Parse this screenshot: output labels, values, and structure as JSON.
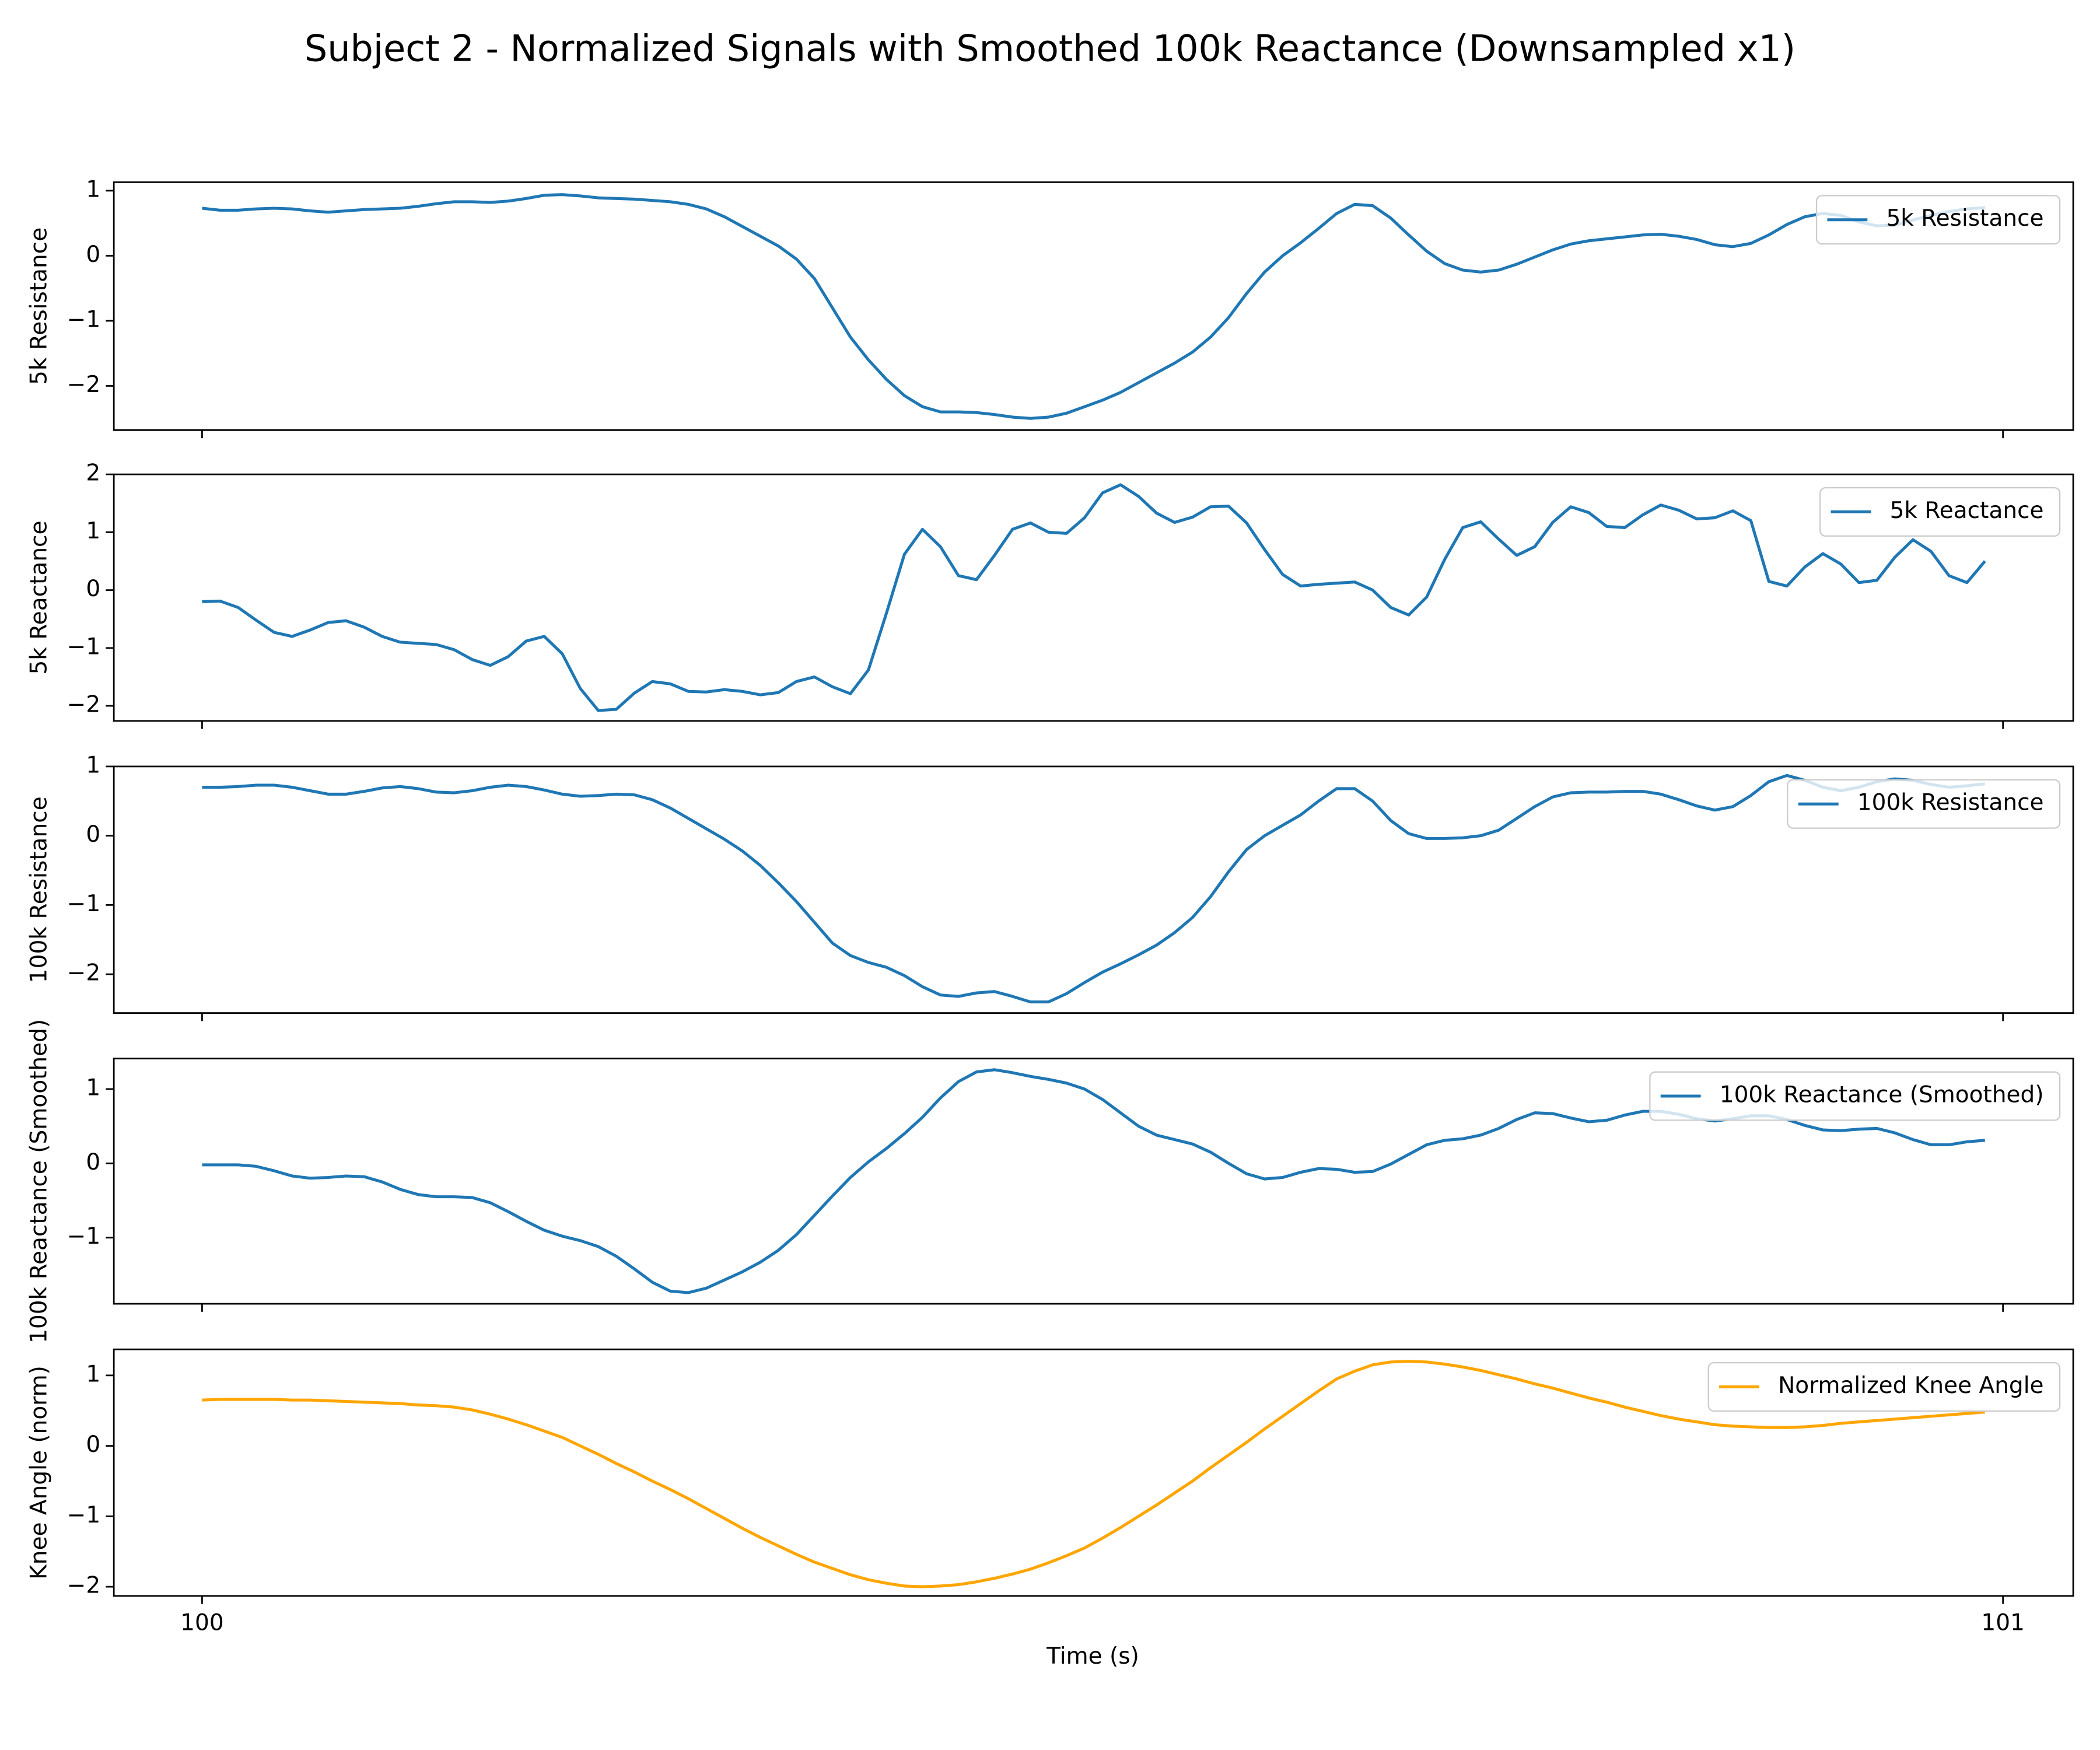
{
  "chart_data": {
    "type": "line",
    "title": "Subject 2 - Normalized Signals with Smoothed 100k Reactance (Downsampled x1)",
    "xlabel": "Time (s)",
    "xlim": [
      99.951,
      101.039
    ],
    "xticks": [
      100,
      101
    ],
    "x": [
      100.0,
      100.01,
      100.02,
      100.03,
      100.04,
      100.05,
      100.06,
      100.07,
      100.08,
      100.09,
      100.1,
      100.11,
      100.12,
      100.13,
      100.14,
      100.15,
      100.16,
      100.17,
      100.18,
      100.19,
      100.2,
      100.21,
      100.22,
      100.23,
      100.24,
      100.25,
      100.26,
      100.27,
      100.28,
      100.29,
      100.3,
      100.31,
      100.32,
      100.33,
      100.34,
      100.35,
      100.36,
      100.37,
      100.38,
      100.39,
      100.4,
      100.41,
      100.42,
      100.43,
      100.44,
      100.45,
      100.46,
      100.47,
      100.48,
      100.49,
      100.5,
      100.51,
      100.52,
      100.53,
      100.54,
      100.55,
      100.56,
      100.57,
      100.58,
      100.59,
      100.6,
      100.61,
      100.62,
      100.63,
      100.64,
      100.65,
      100.66,
      100.67,
      100.68,
      100.69,
      100.7,
      100.71,
      100.72,
      100.73,
      100.74,
      100.75,
      100.76,
      100.77,
      100.78,
      100.79,
      100.8,
      100.81,
      100.82,
      100.83,
      100.84,
      100.85,
      100.86,
      100.87,
      100.88,
      100.89,
      100.9,
      100.91,
      100.92,
      100.93,
      100.94,
      100.95,
      100.96,
      100.97,
      100.98,
      100.99
    ],
    "panels": [
      {
        "ylabel": "5k Resistance",
        "ylim": [
          -2.68,
          1.13
        ],
        "yticks": [
          {
            "value": -2,
            "label": "−2"
          },
          {
            "value": -1,
            "label": "−1"
          },
          0,
          1
        ],
        "legend": "upper right",
        "series": [
          {
            "name": "5k Resistance",
            "color": "#1f77b4",
            "values": [
              0.73,
              0.7,
              0.7,
              0.72,
              0.73,
              0.72,
              0.69,
              0.67,
              0.69,
              0.71,
              0.72,
              0.73,
              0.76,
              0.8,
              0.83,
              0.83,
              0.82,
              0.84,
              0.88,
              0.93,
              0.94,
              0.92,
              0.89,
              0.88,
              0.87,
              0.85,
              0.83,
              0.79,
              0.72,
              0.6,
              0.45,
              0.3,
              0.15,
              -0.05,
              -0.35,
              -0.8,
              -1.25,
              -1.6,
              -1.9,
              -2.15,
              -2.32,
              -2.4,
              -2.4,
              -2.41,
              -2.44,
              -2.48,
              -2.5,
              -2.48,
              -2.42,
              -2.32,
              -2.22,
              -2.1,
              -1.95,
              -1.8,
              -1.65,
              -1.48,
              -1.25,
              -0.95,
              -0.58,
              -0.25,
              0.0,
              0.2,
              0.42,
              0.65,
              0.79,
              0.77,
              0.58,
              0.32,
              0.07,
              -0.12,
              -0.22,
              -0.25,
              -0.22,
              -0.13,
              -0.02,
              0.09,
              0.18,
              0.23,
              0.26,
              0.29,
              0.32,
              0.33,
              0.3,
              0.25,
              0.17,
              0.14,
              0.19,
              0.32,
              0.48,
              0.6,
              0.65,
              0.62,
              0.52,
              0.46,
              0.47,
              0.55,
              0.62,
              0.68,
              0.72,
              0.74
            ]
          }
        ]
      },
      {
        "ylabel": "5k Reactance",
        "ylim": [
          -2.26,
          2.0
        ],
        "yticks": [
          {
            "value": -2,
            "label": "−2"
          },
          {
            "value": -1,
            "label": "−1"
          },
          0,
          1,
          2
        ],
        "legend": "upper right",
        "series": [
          {
            "name": "5k Reactance",
            "color": "#1f77b4",
            "values": [
              -0.2,
              -0.19,
              -0.3,
              -0.52,
              -0.73,
              -0.8,
              -0.69,
              -0.56,
              -0.53,
              -0.64,
              -0.8,
              -0.9,
              -0.92,
              -0.94,
              -1.03,
              -1.2,
              -1.3,
              -1.15,
              -0.88,
              -0.8,
              -1.1,
              -1.7,
              -2.08,
              -2.06,
              -1.78,
              -1.58,
              -1.62,
              -1.75,
              -1.76,
              -1.72,
              -1.75,
              -1.81,
              -1.77,
              -1.58,
              -1.5,
              -1.67,
              -1.79,
              -1.38,
              -0.4,
              0.62,
              1.05,
              0.75,
              0.25,
              0.18,
              0.6,
              1.05,
              1.16,
              1.0,
              0.98,
              1.25,
              1.68,
              1.82,
              1.62,
              1.33,
              1.17,
              1.26,
              1.44,
              1.45,
              1.16,
              0.7,
              0.27,
              0.07,
              0.1,
              0.12,
              0.14,
              0.0,
              -0.3,
              -0.43,
              -0.12,
              0.53,
              1.08,
              1.18,
              0.88,
              0.6,
              0.75,
              1.17,
              1.44,
              1.34,
              1.1,
              1.08,
              1.3,
              1.47,
              1.38,
              1.23,
              1.25,
              1.37,
              1.2,
              0.15,
              0.07,
              0.4,
              0.63,
              0.45,
              0.13,
              0.17,
              0.57,
              0.87,
              0.67,
              0.25,
              0.13,
              0.5
            ]
          }
        ]
      },
      {
        "ylabel": "100k Resistance",
        "ylim": [
          -2.56,
          1.0
        ],
        "yticks": [
          {
            "value": -2,
            "label": "−2"
          },
          {
            "value": -1,
            "label": "−1"
          },
          0,
          1
        ],
        "legend": "upper right",
        "series": [
          {
            "name": "100k Resistance",
            "color": "#1f77b4",
            "values": [
              0.7,
              0.7,
              0.71,
              0.73,
              0.73,
              0.7,
              0.65,
              0.6,
              0.6,
              0.64,
              0.69,
              0.71,
              0.68,
              0.63,
              0.62,
              0.65,
              0.7,
              0.73,
              0.71,
              0.66,
              0.6,
              0.57,
              0.58,
              0.6,
              0.59,
              0.52,
              0.4,
              0.25,
              0.1,
              -0.05,
              -0.22,
              -0.43,
              -0.68,
              -0.95,
              -1.25,
              -1.55,
              -1.73,
              -1.83,
              -1.9,
              -2.02,
              -2.18,
              -2.3,
              -2.32,
              -2.27,
              -2.25,
              -2.32,
              -2.4,
              -2.4,
              -2.28,
              -2.12,
              -1.97,
              -1.85,
              -1.72,
              -1.58,
              -1.4,
              -1.18,
              -0.88,
              -0.52,
              -0.2,
              0.0,
              0.15,
              0.3,
              0.5,
              0.68,
              0.68,
              0.5,
              0.22,
              0.03,
              -0.04,
              -0.04,
              -0.03,
              0.0,
              0.08,
              0.25,
              0.42,
              0.56,
              0.62,
              0.63,
              0.63,
              0.64,
              0.64,
              0.6,
              0.52,
              0.43,
              0.37,
              0.42,
              0.58,
              0.78,
              0.87,
              0.8,
              0.7,
              0.65,
              0.7,
              0.78,
              0.82,
              0.8,
              0.74,
              0.7,
              0.72,
              0.75
            ]
          }
        ]
      },
      {
        "ylabel": "100k Reactance (Smoothed)",
        "ylim": [
          -1.89,
          1.41
        ],
        "yticks": [
          {
            "value": -1,
            "label": "−1"
          },
          0,
          1
        ],
        "legend": "upper right",
        "series": [
          {
            "name": "100k Reactance (Smoothed)",
            "color": "#1f77b4",
            "values": [
              -0.02,
              -0.02,
              -0.02,
              -0.04,
              -0.1,
              -0.17,
              -0.2,
              -0.19,
              -0.17,
              -0.18,
              -0.25,
              -0.35,
              -0.42,
              -0.45,
              -0.45,
              -0.46,
              -0.53,
              -0.65,
              -0.78,
              -0.9,
              -0.98,
              -1.04,
              -1.12,
              -1.25,
              -1.42,
              -1.6,
              -1.72,
              -1.74,
              -1.68,
              -1.57,
              -1.46,
              -1.33,
              -1.17,
              -0.96,
              -0.7,
              -0.44,
              -0.19,
              0.02,
              0.2,
              0.4,
              0.62,
              0.88,
              1.1,
              1.23,
              1.26,
              1.22,
              1.17,
              1.13,
              1.08,
              1.0,
              0.86,
              0.68,
              0.5,
              0.38,
              0.32,
              0.26,
              0.15,
              0.0,
              -0.14,
              -0.21,
              -0.19,
              -0.12,
              -0.07,
              -0.08,
              -0.12,
              -0.11,
              -0.01,
              0.12,
              0.25,
              0.31,
              0.33,
              0.38,
              0.47,
              0.59,
              0.68,
              0.67,
              0.61,
              0.56,
              0.58,
              0.65,
              0.7,
              0.7,
              0.66,
              0.6,
              0.57,
              0.6,
              0.64,
              0.64,
              0.59,
              0.51,
              0.45,
              0.44,
              0.46,
              0.47,
              0.41,
              0.32,
              0.25,
              0.25,
              0.29,
              0.31
            ]
          }
        ]
      },
      {
        "ylabel": "Knee Angle (norm)",
        "ylim": [
          -2.13,
          1.37
        ],
        "yticks": [
          {
            "value": -2,
            "label": "−2"
          },
          {
            "value": -1,
            "label": "−1"
          },
          0,
          1
        ],
        "legend": "upper right",
        "series": [
          {
            "name": "Normalized Knee Angle",
            "color": "#ffa500",
            "values": [
              0.65,
              0.66,
              0.66,
              0.66,
              0.66,
              0.65,
              0.65,
              0.64,
              0.63,
              0.62,
              0.61,
              0.6,
              0.58,
              0.57,
              0.55,
              0.51,
              0.45,
              0.38,
              0.3,
              0.21,
              0.12,
              0.0,
              -0.12,
              -0.25,
              -0.37,
              -0.5,
              -0.62,
              -0.75,
              -0.89,
              -1.03,
              -1.17,
              -1.3,
              -1.42,
              -1.54,
              -1.65,
              -1.74,
              -1.83,
              -1.9,
              -1.95,
              -1.99,
              -2.0,
              -1.99,
              -1.97,
              -1.93,
              -1.88,
              -1.82,
              -1.75,
              -1.66,
              -1.56,
              -1.45,
              -1.31,
              -1.16,
              -1.0,
              -0.84,
              -0.67,
              -0.5,
              -0.31,
              -0.13,
              0.05,
              0.24,
              0.42,
              0.6,
              0.78,
              0.95,
              1.06,
              1.15,
              1.19,
              1.2,
              1.19,
              1.16,
              1.12,
              1.07,
              1.01,
              0.95,
              0.88,
              0.82,
              0.75,
              0.68,
              0.62,
              0.55,
              0.49,
              0.43,
              0.38,
              0.34,
              0.3,
              0.28,
              0.27,
              0.26,
              0.26,
              0.27,
              0.29,
              0.32,
              0.34,
              0.36,
              0.38,
              0.4,
              0.42,
              0.44,
              0.46,
              0.48
            ]
          }
        ]
      }
    ]
  }
}
